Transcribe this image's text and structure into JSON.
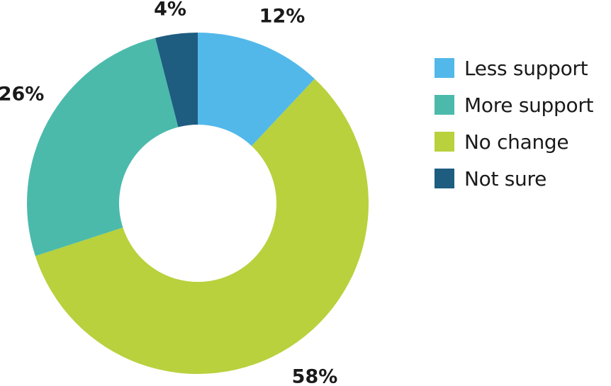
{
  "chart_data": {
    "type": "pie",
    "subtype": "donut",
    "categories": [
      "Less support",
      "No change",
      "More support",
      "Not sure"
    ],
    "values": [
      12,
      58,
      26,
      4
    ],
    "labels": [
      "12%",
      "58%",
      "26%",
      "4%"
    ],
    "colors": [
      "#52b8ea",
      "#b8d13d",
      "#4bbaab",
      "#1e5c80"
    ],
    "legend_placement": "right",
    "legend": [
      {
        "label": "Less support",
        "color": "#52b8ea"
      },
      {
        "label": "More support",
        "color": "#4bbaab"
      },
      {
        "label": "No change",
        "color": "#b8d13d"
      },
      {
        "label": "Not sure",
        "color": "#1e5c80"
      }
    ]
  }
}
